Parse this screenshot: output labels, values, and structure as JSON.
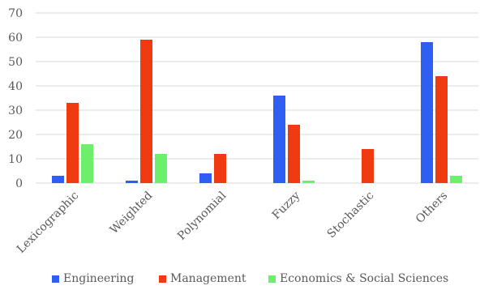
{
  "chart_data": {
    "type": "bar",
    "categories": [
      "Lexicographic",
      "Weighted",
      "Polynomial",
      "Fuzzy",
      "Stochastic",
      "Others"
    ],
    "series": [
      {
        "name": "Engineering",
        "color": "#2f5ff2",
        "values": [
          3,
          1,
          4,
          36,
          0,
          58
        ]
      },
      {
        "name": "Management",
        "color": "#f03a12",
        "values": [
          33,
          59,
          12,
          24,
          14,
          44
        ]
      },
      {
        "name": "Economics & Social Sciences",
        "color": "#6cf06c",
        "values": [
          16,
          12,
          0,
          1,
          0,
          3
        ]
      }
    ],
    "ylim": [
      0,
      70
    ],
    "yticks": [
      0,
      10,
      20,
      30,
      40,
      50,
      60,
      70
    ],
    "grid": true,
    "legend_position": "bottom"
  }
}
